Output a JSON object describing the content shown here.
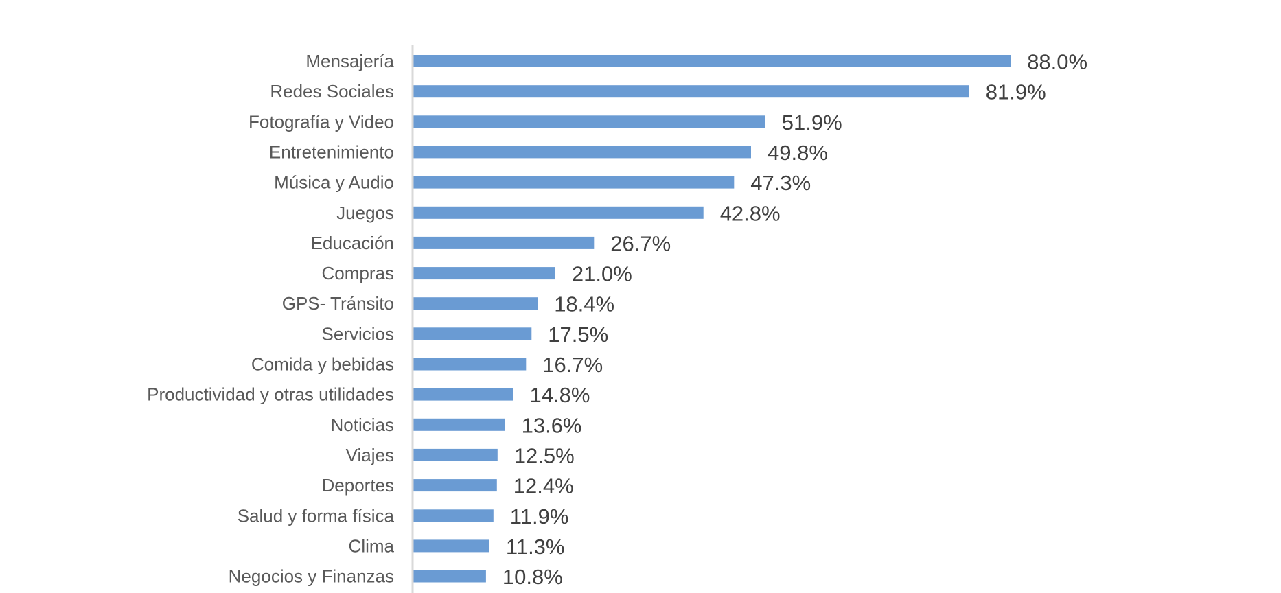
{
  "chart_data": {
    "type": "bar",
    "orientation": "horizontal",
    "categories": [
      "Mensajería",
      "Redes Sociales",
      "Fotografía y Video",
      "Entretenimiento",
      "Música y Audio",
      "Juegos",
      "Educación",
      "Compras",
      "GPS- Tránsito",
      "Servicios",
      "Comida y bebidas",
      "Productividad y otras utilidades",
      "Noticias",
      "Viajes",
      "Deportes",
      "Salud y forma física",
      "Clima",
      "Negocios y Finanzas"
    ],
    "values": [
      88.0,
      81.9,
      51.9,
      49.8,
      47.3,
      42.8,
      26.7,
      21.0,
      18.4,
      17.5,
      16.7,
      14.8,
      13.6,
      12.5,
      12.4,
      11.9,
      11.3,
      10.8
    ],
    "value_labels": [
      "88.0%",
      "81.9%",
      "51.9%",
      "49.8%",
      "47.3%",
      "42.8%",
      "26.7%",
      "21.0%",
      "18.4%",
      "17.5%",
      "16.7%",
      "14.8%",
      "13.6%",
      "12.5%",
      "12.4%",
      "11.9%",
      "11.3%",
      "10.8%"
    ],
    "unit": "%",
    "title": "",
    "xlabel": "",
    "ylabel": "",
    "xlim": [
      0,
      100
    ],
    "grid": false,
    "legend": "none",
    "bar_color": "#6A9BD3",
    "axis_color": "#D9D9D9"
  }
}
